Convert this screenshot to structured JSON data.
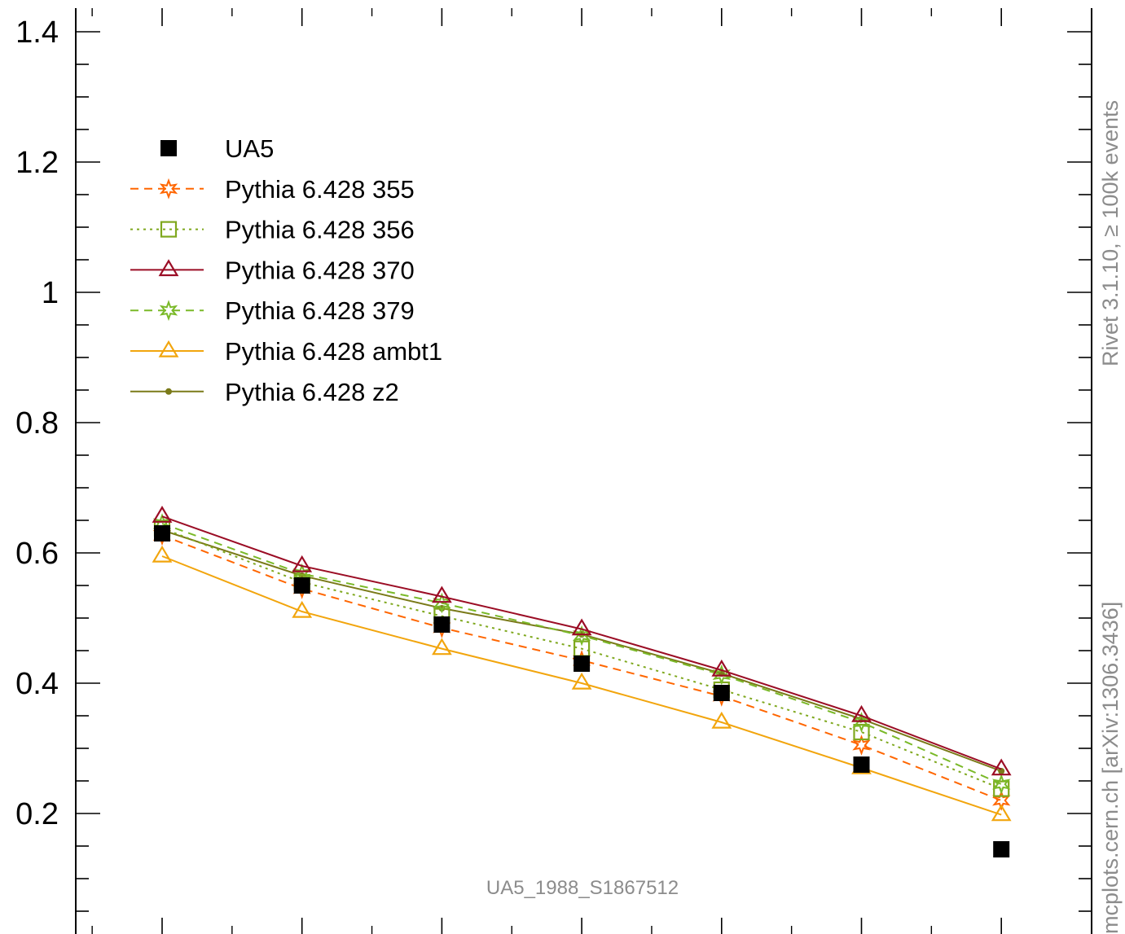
{
  "chart_data": {
    "type": "line",
    "x": [
      1,
      2,
      3,
      4,
      5,
      6,
      7
    ],
    "ylim": [
      0,
      1.42
    ],
    "y_ticks": [
      "0.2",
      "0.4",
      "0.6",
      "0.8",
      "1",
      "1.2",
      "1.4"
    ],
    "y_tick_values": [
      0.2,
      0.4,
      0.6,
      0.8,
      1.0,
      1.2,
      1.4
    ],
    "series": [
      {
        "name": "UA5",
        "style": "data",
        "color": "#000000",
        "values": [
          0.63,
          0.55,
          0.49,
          0.43,
          0.385,
          0.275,
          0.145
        ]
      },
      {
        "name": "Pythia 6.428 355",
        "style": "dashed",
        "marker": "star",
        "color": "#ff6600",
        "values": [
          0.627,
          0.545,
          0.485,
          0.435,
          0.38,
          0.305,
          0.22
        ]
      },
      {
        "name": "Pythia 6.428 356",
        "style": "dotted",
        "marker": "square",
        "color": "#7fa81e",
        "values": [
          0.638,
          0.555,
          0.503,
          0.453,
          0.39,
          0.325,
          0.238
        ]
      },
      {
        "name": "Pythia 6.428 370",
        "style": "solid",
        "marker": "triangle",
        "color": "#9b0d25",
        "values": [
          0.656,
          0.58,
          0.533,
          0.483,
          0.42,
          0.35,
          0.268
        ]
      },
      {
        "name": "Pythia 6.428 379",
        "style": "dashed",
        "marker": "star",
        "color": "#7ab928",
        "values": [
          0.645,
          0.568,
          0.523,
          0.473,
          0.413,
          0.34,
          0.245
        ]
      },
      {
        "name": "Pythia 6.428 ambt1",
        "style": "solid",
        "marker": "triangle",
        "color": "#f2a50d",
        "values": [
          0.595,
          0.51,
          0.453,
          0.4,
          0.34,
          0.27,
          0.198
        ]
      },
      {
        "name": "Pythia 6.428 z2",
        "style": "solid",
        "marker": "dot",
        "color": "#7a7a19",
        "values": [
          0.635,
          0.565,
          0.515,
          0.475,
          0.415,
          0.345,
          0.265
        ]
      }
    ],
    "legend_position": "top-left",
    "grid": false
  },
  "annotations": {
    "side_top": "Rivet 3.1.10, ≥ 100k events",
    "side_bottom": "mcplots.cern.ch [arXiv:1306.3436]",
    "watermark": "UA5_1988_S1867512"
  }
}
